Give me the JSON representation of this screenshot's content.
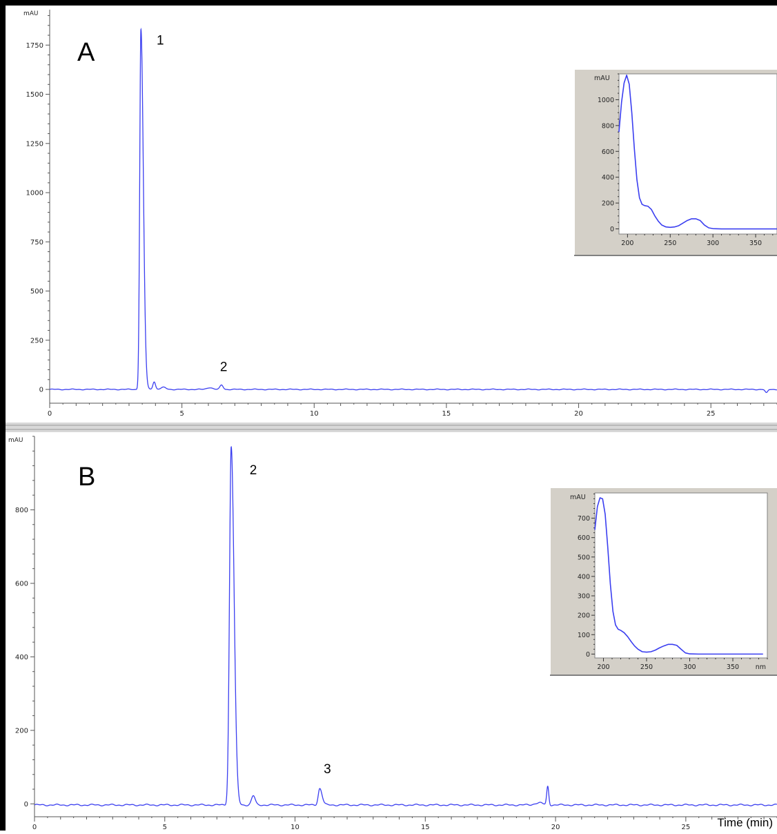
{
  "panel_labels": [
    "A",
    "B"
  ],
  "x_axis_label": "Time (min)",
  "chart_data": [
    {
      "type": "line",
      "panel": "A",
      "ylabel": "mAU",
      "xlim": [
        0,
        27.5
      ],
      "ylim": [
        -70,
        1930
      ],
      "x_ticks": [
        0,
        5,
        10,
        15,
        20,
        25
      ],
      "y_ticks": [
        0,
        250,
        500,
        750,
        1000,
        1250,
        1500,
        1750
      ],
      "baseline": 0,
      "peaks": [
        {
          "rt": 3.45,
          "height": 1830,
          "sigma": 0.045,
          "tail": 0.09
        },
        {
          "rt": 3.95,
          "height": 40,
          "sigma": 0.05,
          "tail": 0.05
        },
        {
          "rt": 4.3,
          "height": 10,
          "sigma": 0.1,
          "tail": 0.1
        },
        {
          "rt": 6.05,
          "height": 10,
          "sigma": 0.1,
          "tail": 0.1
        },
        {
          "rt": 6.5,
          "height": 22,
          "sigma": 0.06,
          "tail": 0.06
        },
        {
          "rt": 27.1,
          "height": -18,
          "sigma": 0.05,
          "tail": 0.05
        }
      ],
      "annotations": [
        {
          "text": "1",
          "rt": 3.45
        },
        {
          "text": "2",
          "rt": 6.5
        }
      ],
      "color": "#3a3ef0",
      "inset": {
        "type": "line",
        "ylabel": "mAU",
        "xlabel": "",
        "xlim": [
          190,
          375
        ],
        "ylim": [
          -40,
          1200
        ],
        "x_ticks": [
          200,
          250,
          300,
          350
        ],
        "y_ticks": [
          0,
          200,
          400,
          600,
          800,
          1000
        ],
        "x": [
          190,
          193,
          196,
          199,
          202,
          205,
          208,
          211,
          214,
          217,
          220,
          224,
          228,
          232,
          236,
          240,
          245,
          250,
          255,
          260,
          265,
          270,
          275,
          280,
          285,
          290,
          295,
          300,
          310,
          320,
          340,
          360,
          375
        ],
        "y": [
          750,
          980,
          1130,
          1190,
          1120,
          900,
          620,
          380,
          240,
          190,
          180,
          175,
          150,
          100,
          60,
          30,
          15,
          12,
          15,
          25,
          45,
          65,
          78,
          78,
          65,
          30,
          8,
          2,
          0,
          0,
          0,
          0,
          0
        ]
      }
    },
    {
      "type": "line",
      "panel": "B",
      "ylabel": "mAU",
      "xlim": [
        0,
        28.5
      ],
      "ylim": [
        -35,
        1000
      ],
      "x_ticks": [
        0,
        5,
        10,
        15,
        20,
        25
      ],
      "y_ticks": [
        0,
        200,
        400,
        600,
        800
      ],
      "baseline": -3,
      "peaks": [
        {
          "rt": 7.55,
          "height": 975,
          "sigma": 0.065,
          "tail": 0.11
        },
        {
          "rt": 8.4,
          "height": 25,
          "sigma": 0.07,
          "tail": 0.07
        },
        {
          "rt": 10.95,
          "height": 45,
          "sigma": 0.06,
          "tail": 0.09
        },
        {
          "rt": 19.7,
          "height": 50,
          "sigma": 0.04,
          "tail": 0.04
        },
        {
          "rt": 19.35,
          "height": 6,
          "sigma": 0.15,
          "tail": 0.15
        }
      ],
      "annotations": [
        {
          "text": "2",
          "rt": 7.55
        },
        {
          "text": "3",
          "rt": 10.95
        }
      ],
      "color": "#3a3ef0",
      "inset": {
        "type": "line",
        "ylabel": "mAU",
        "xlabel": "nm",
        "xlim": [
          190,
          390
        ],
        "ylim": [
          -20,
          830
        ],
        "x_ticks": [
          200,
          250,
          300,
          350
        ],
        "y_ticks": [
          0,
          100,
          200,
          300,
          400,
          500,
          600,
          700
        ],
        "x": [
          190,
          193,
          196,
          199,
          202,
          205,
          208,
          211,
          214,
          217,
          220,
          224,
          228,
          232,
          236,
          240,
          245,
          250,
          255,
          260,
          265,
          270,
          275,
          280,
          285,
          290,
          295,
          300,
          310,
          320,
          340,
          360,
          385
        ],
        "y": [
          640,
          760,
          805,
          800,
          720,
          550,
          360,
          220,
          150,
          128,
          122,
          110,
          90,
          65,
          42,
          25,
          12,
          10,
          12,
          20,
          32,
          42,
          50,
          50,
          45,
          25,
          6,
          1,
          0,
          0,
          0,
          0,
          0
        ]
      }
    }
  ]
}
